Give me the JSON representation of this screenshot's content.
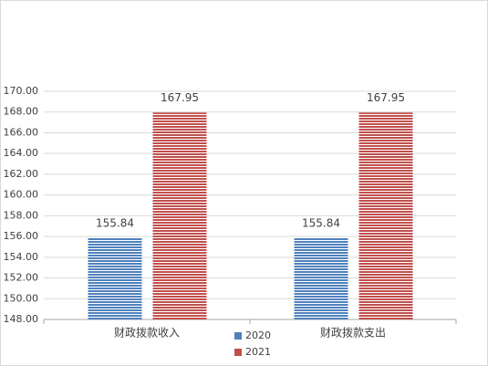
{
  "chart_data": {
    "type": "bar",
    "categories": [
      "财政拨款收入",
      "财政拨款支出"
    ],
    "series": [
      {
        "name": "2020",
        "color": "#4f81bd",
        "values": [
          155.84,
          155.84
        ]
      },
      {
        "name": "2021",
        "color": "#c0504d",
        "values": [
          167.95,
          167.95
        ]
      }
    ],
    "ylim": [
      148,
      170
    ],
    "yticks": [
      {
        "value": 148,
        "label": "148.00"
      },
      {
        "value": 150,
        "label": "150.00"
      },
      {
        "value": 152,
        "label": "152.00"
      },
      {
        "value": 154,
        "label": "154.00"
      },
      {
        "value": 156,
        "label": "156.00"
      },
      {
        "value": 158,
        "label": "158.00"
      },
      {
        "value": 160,
        "label": "160.00"
      },
      {
        "value": 162,
        "label": "162.00"
      },
      {
        "value": 164,
        "label": "164.00"
      },
      {
        "value": 166,
        "label": "166.00"
      },
      {
        "value": 168,
        "label": "168.00"
      },
      {
        "value": 170,
        "label": "170.00"
      }
    ],
    "grid": true,
    "legend": "bottom"
  }
}
